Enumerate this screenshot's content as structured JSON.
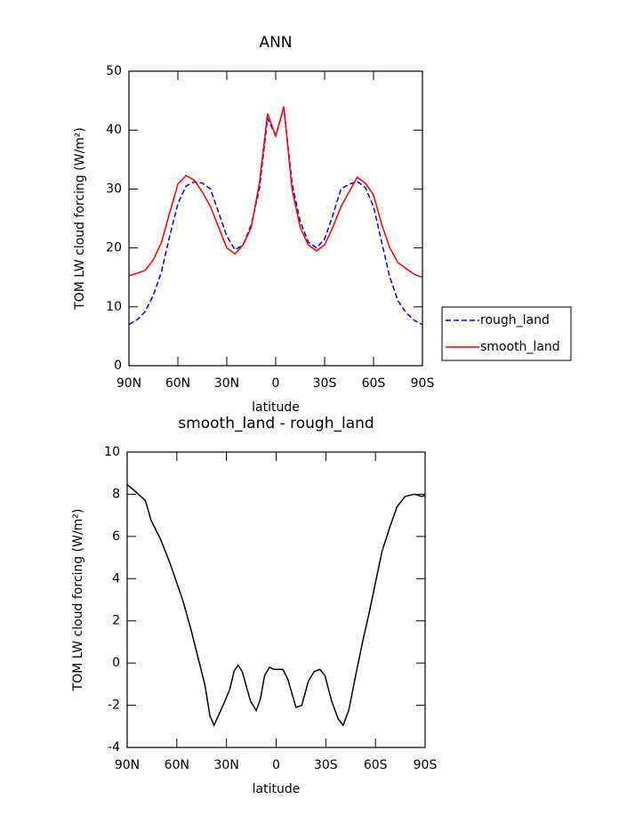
{
  "chart_data": [
    {
      "type": "line",
      "title": "ANN",
      "xlabel": "latitude",
      "ylabel": "TOM LW cloud forcing (W/m²)",
      "x": [
        90,
        85,
        80,
        75,
        70,
        65,
        60,
        55,
        50,
        45,
        40,
        35,
        30,
        25,
        20,
        15,
        10,
        5,
        0,
        -5,
        -10,
        -15,
        -20,
        -25,
        -30,
        -35,
        -40,
        -45,
        -50,
        -55,
        -60,
        -65,
        -70,
        -75,
        -80,
        -85,
        -90
      ],
      "series": [
        {
          "name": "rough_land",
          "color": "#0000ff",
          "linestyle": "dashed",
          "values": [
            7,
            7.8,
            9.2,
            12,
            16,
            22,
            27.5,
            30.5,
            31.2,
            31,
            30,
            26,
            22,
            19.7,
            20.5,
            24,
            30,
            42,
            39,
            43.8,
            31,
            24.5,
            21,
            20,
            21.5,
            25.5,
            30,
            30.8,
            31.3,
            30.2,
            27,
            21,
            15,
            11,
            9,
            7.7,
            7
          ]
        },
        {
          "name": "smooth_land",
          "color": "#ff0000",
          "linestyle": "solid",
          "values": [
            15.3,
            15.7,
            16.2,
            18,
            21,
            26,
            30.8,
            32.3,
            31.5,
            29.5,
            27,
            23.5,
            20,
            19,
            20.5,
            23.5,
            31,
            42.8,
            39,
            44,
            30,
            23.5,
            20.5,
            19.5,
            20.5,
            23.5,
            27,
            29.5,
            32,
            31,
            29,
            24,
            20,
            17.5,
            16.5,
            15.5,
            15
          ]
        }
      ],
      "xlim": [
        90,
        -90
      ],
      "xticks": [
        {
          "value": 90,
          "label": "90N"
        },
        {
          "value": 60,
          "label": "60N"
        },
        {
          "value": 30,
          "label": "30N"
        },
        0,
        {
          "value": -30,
          "label": "30S"
        },
        {
          "value": -60,
          "label": "60S"
        },
        {
          "value": -90,
          "label": "90S"
        }
      ],
      "ylim": [
        0,
        50
      ],
      "yticks": [
        0,
        10,
        20,
        30,
        40,
        50
      ],
      "grid": false,
      "legend": "right"
    },
    {
      "type": "line",
      "title": "smooth_land - rough_land",
      "xlabel": "latitude",
      "ylabel": "TOM LW cloud forcing (W/m²)",
      "x": [
        90,
        86,
        79,
        75.5,
        70,
        64,
        56.5,
        51.5,
        47.5,
        43,
        40,
        37.5,
        31.5,
        28,
        25.5,
        23,
        20.5,
        15.5,
        12,
        9.5,
        7,
        4,
        1.5,
        -4,
        -7,
        -12,
        -15.5,
        -19.5,
        -23,
        -26.5,
        -29.5,
        -33.5,
        -37.5,
        -40.5,
        -44,
        -48,
        -52.5,
        -56,
        -60.5,
        -64,
        -68.5,
        -73,
        -78,
        -83.5,
        -88,
        -90
      ],
      "series": [
        {
          "color": "#000000",
          "linestyle": "solid",
          "values": [
            8.45,
            8.2,
            7.7,
            6.75,
            5.9,
            4.7,
            3.0,
            1.6,
            0.35,
            -1.05,
            -2.5,
            -2.95,
            -1.9,
            -1.25,
            -0.4,
            -0.1,
            -0.4,
            -1.8,
            -2.25,
            -1.7,
            -0.6,
            -0.2,
            -0.3,
            -0.3,
            -0.75,
            -2.1,
            -2.0,
            -0.85,
            -0.4,
            -0.3,
            -0.6,
            -1.8,
            -2.65,
            -2.95,
            -2.2,
            -0.6,
            1.1,
            2.3,
            4.0,
            5.3,
            6.4,
            7.4,
            7.9,
            8.0,
            7.9,
            7.95
          ]
        }
      ],
      "xlim": [
        90,
        -90
      ],
      "xticks": [
        {
          "value": 90,
          "label": "90N"
        },
        {
          "value": 60,
          "label": "60N"
        },
        {
          "value": 30,
          "label": "30N"
        },
        0,
        {
          "value": -30,
          "label": "30S"
        },
        {
          "value": -60,
          "label": "60S"
        },
        {
          "value": -90,
          "label": "90S"
        }
      ],
      "ylim": [
        -4,
        10
      ],
      "yticks": [
        -4,
        -2,
        0,
        2,
        4,
        6,
        8,
        10
      ],
      "grid": false
    }
  ]
}
